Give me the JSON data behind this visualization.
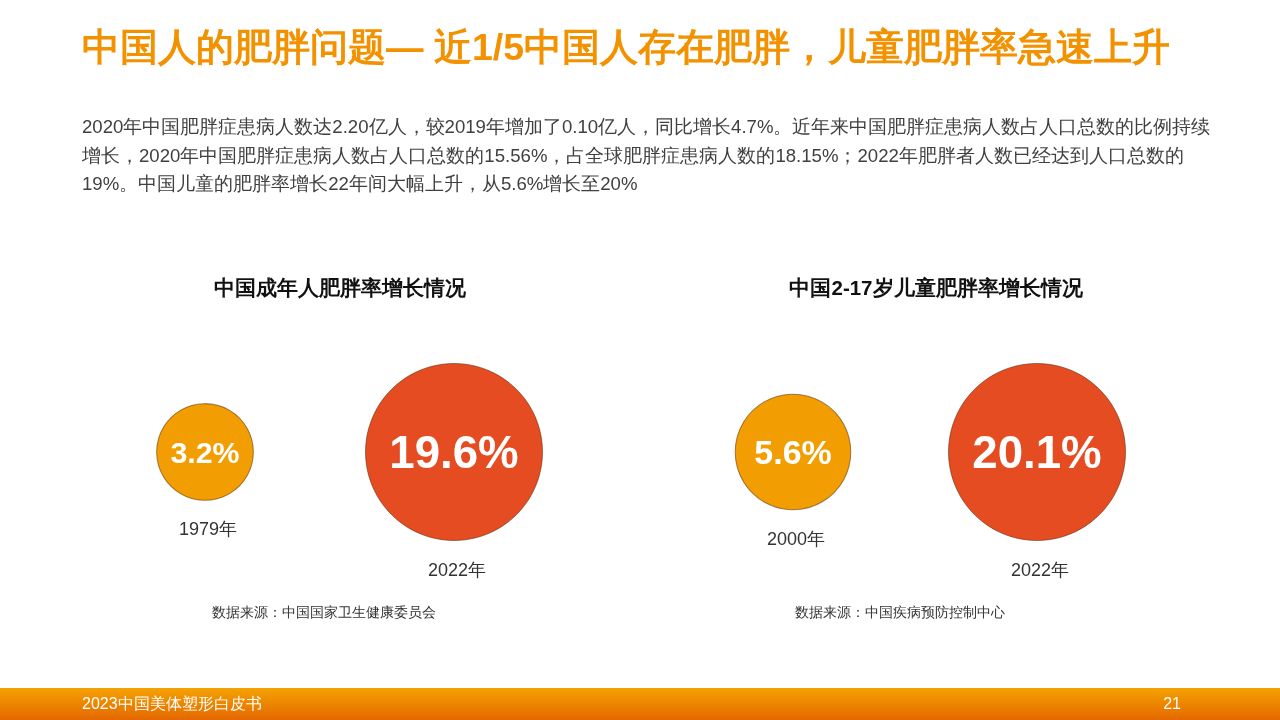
{
  "chart_data": [
    {
      "type": "other",
      "title": "中国人的肥胖问题— 近1/5中国人存在肥胖，儿童肥胖率急速上升",
      "subtitle": "2020年中国肥胖症患病人数达2.20亿人，较2019年增加了0.10亿人，同比增长4.7%。近年来中国肥胖症患病人数占人口总数的比例持续增长，2020年中国肥胖症患病人数占人口总数的15.56%，占全球肥胖症患病人数的18.15%；2022年肥胖者人数已经达到人口总数的19%。中国儿童的肥胖率增长22年间大幅上升，从5.6%增长至20%",
      "annotations": [
        "2023中国美体塑形白皮书",
        "21"
      ]
    },
    {
      "type": "other",
      "title": "中国成年人肥胖率增长情况",
      "categories": [
        "1979年",
        "2022年"
      ],
      "values": [
        3.2,
        19.6
      ],
      "value_labels": [
        "3.2%",
        "19.6%"
      ],
      "colors": [
        "#f29e02",
        "#e64c22"
      ],
      "annotations": [
        "数据来源：中国国家卫生健康委员会"
      ]
    },
    {
      "type": "other",
      "title": "中国2-17岁儿童肥胖率增长情况",
      "categories": [
        "2000年",
        "2022年"
      ],
      "values": [
        5.6,
        20.1
      ],
      "value_labels": [
        "5.6%",
        "20.1%"
      ],
      "colors": [
        "#f29e02",
        "#e64c22"
      ],
      "annotations": [
        "数据来源：中国疾病预防控制中心"
      ]
    }
  ]
}
